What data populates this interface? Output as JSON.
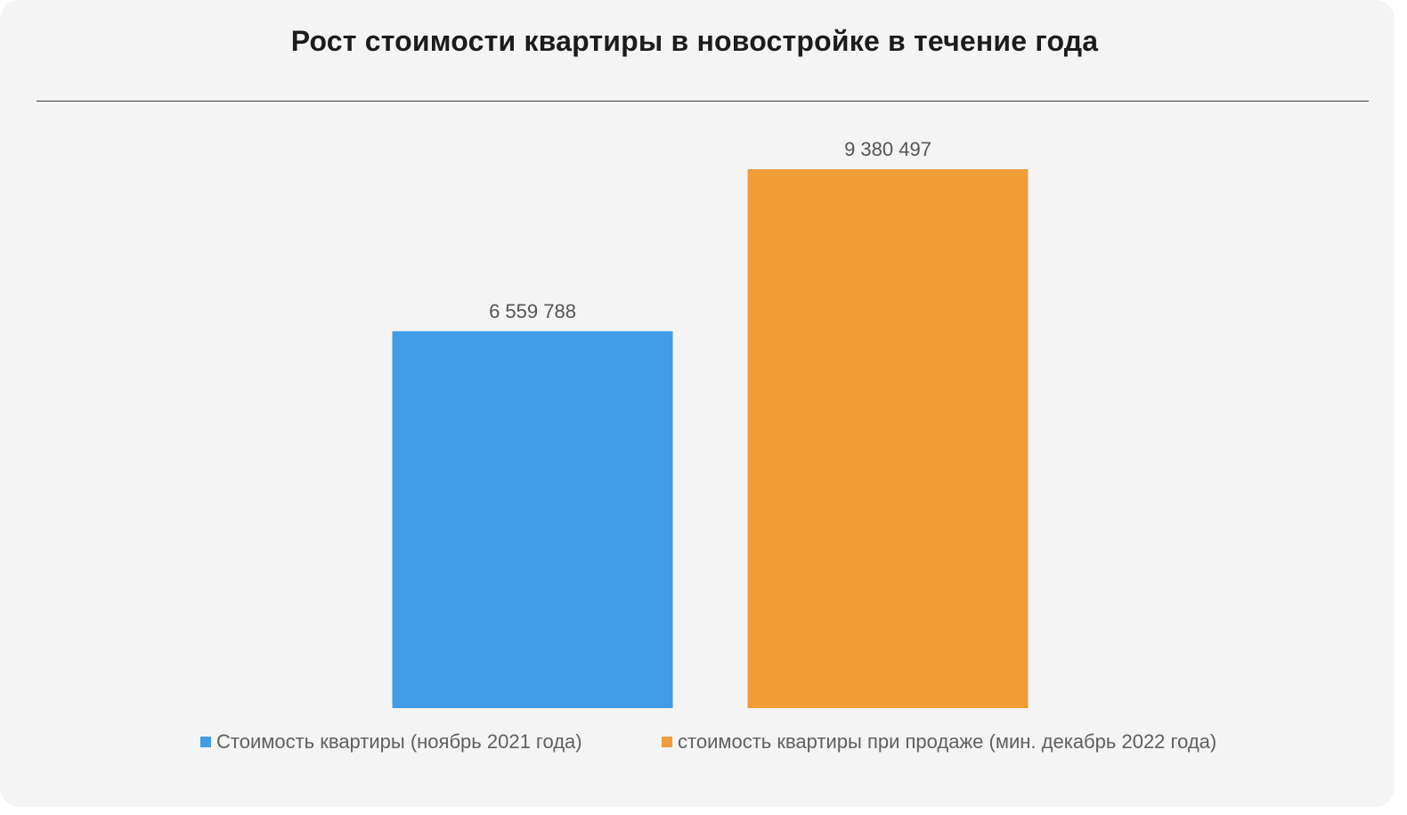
{
  "chart_data": {
    "type": "bar",
    "title": "Рост стоимости квартиры в новостройке в течение года",
    "xlabel": "",
    "ylabel": "",
    "ylim": [
      0,
      9380497
    ],
    "grid": false,
    "legend_position": "bottom",
    "series": [
      {
        "name": "Стоимость квартиры (ноябрь 2021 года)",
        "value": 6559788,
        "label": "6 559 788",
        "color": "#409ce5"
      },
      {
        "name": "стоимость квартиры при продаже (мин. декабрь 2022 года)",
        "value": 9380497,
        "label": "9 380 497",
        "color": "#f09c38"
      }
    ]
  }
}
